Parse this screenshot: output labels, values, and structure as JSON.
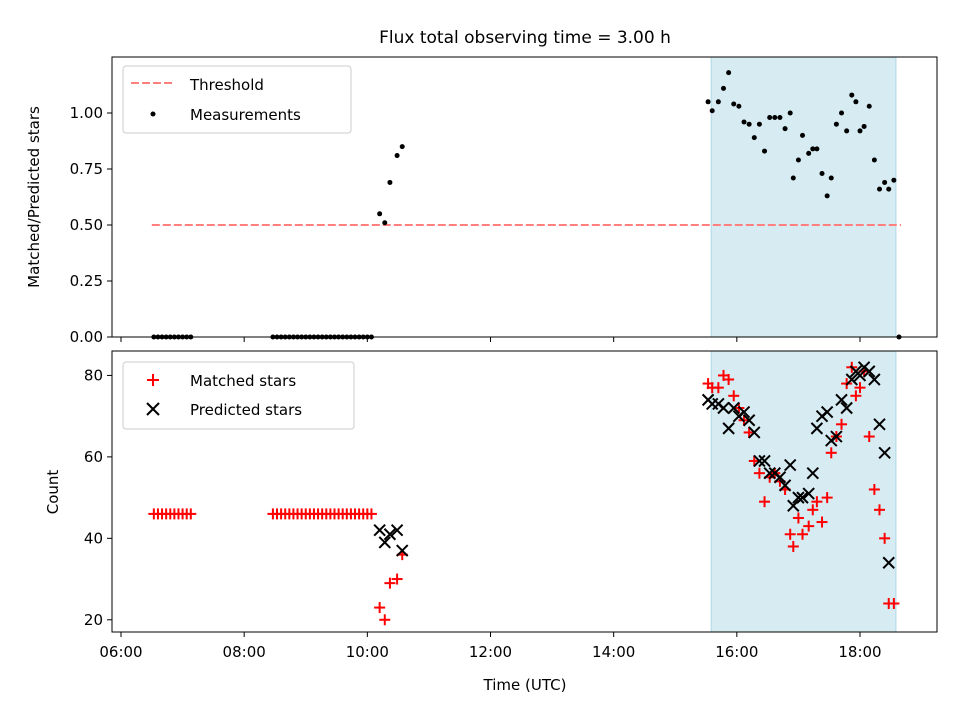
{
  "figure": {
    "title": "Flux total observing time = 3.00 h",
    "xlabel": "Time (UTC)"
  },
  "chart_data": [
    {
      "type": "scatter",
      "ylabel": "Matched/Predicted stars",
      "xlim": [
        "06:00",
        "19:00"
      ],
      "ylim": [
        0,
        1.25
      ],
      "yticks": [
        0.0,
        0.25,
        0.5,
        0.75,
        1.0
      ],
      "ytick_labels": [
        "0.00",
        "0.25",
        "0.50",
        "0.75",
        "1.00"
      ],
      "legend": {
        "placement": "top-left",
        "entries": [
          "Threshold",
          "Measurements"
        ]
      },
      "shaded_interval": {
        "start": "15:35",
        "end": "18:35",
        "color": "#add8e6"
      },
      "threshold": {
        "name": "Threshold",
        "value": 0.5,
        "x_start": "06:30",
        "x_end": "18:40",
        "color": "#ff7f7f",
        "style": "dashed"
      },
      "series": [
        {
          "name": "Measurements",
          "color": "#000000",
          "points": [
            [
              "06:32",
              0
            ],
            [
              "06:36",
              0
            ],
            [
              "06:40",
              0
            ],
            [
              "06:44",
              0
            ],
            [
              "06:48",
              0
            ],
            [
              "06:52",
              0
            ],
            [
              "06:56",
              0
            ],
            [
              "07:00",
              0
            ],
            [
              "07:04",
              0
            ],
            [
              "07:08",
              0
            ],
            [
              "08:28",
              0
            ],
            [
              "08:32",
              0
            ],
            [
              "08:36",
              0
            ],
            [
              "08:40",
              0
            ],
            [
              "08:44",
              0
            ],
            [
              "08:48",
              0
            ],
            [
              "08:52",
              0
            ],
            [
              "08:56",
              0
            ],
            [
              "09:00",
              0
            ],
            [
              "09:04",
              0
            ],
            [
              "09:08",
              0
            ],
            [
              "09:12",
              0
            ],
            [
              "09:16",
              0
            ],
            [
              "09:20",
              0
            ],
            [
              "09:24",
              0
            ],
            [
              "09:28",
              0
            ],
            [
              "09:32",
              0
            ],
            [
              "09:36",
              0
            ],
            [
              "09:40",
              0
            ],
            [
              "09:44",
              0
            ],
            [
              "09:48",
              0
            ],
            [
              "09:52",
              0
            ],
            [
              "09:56",
              0
            ],
            [
              "10:00",
              0
            ],
            [
              "10:04",
              0
            ],
            [
              "10:12",
              0.55
            ],
            [
              "10:17",
              0.51
            ],
            [
              "10:22",
              0.69
            ],
            [
              "10:29",
              0.81
            ],
            [
              "10:34",
              0.85
            ],
            [
              "15:32",
              1.05
            ],
            [
              "15:36",
              1.01
            ],
            [
              "15:42",
              1.05
            ],
            [
              "15:47",
              1.11
            ],
            [
              "15:52",
              1.18
            ],
            [
              "15:57",
              1.04
            ],
            [
              "16:02",
              1.03
            ],
            [
              "16:07",
              0.96
            ],
            [
              "16:12",
              0.95
            ],
            [
              "16:17",
              0.89
            ],
            [
              "16:22",
              0.95
            ],
            [
              "16:27",
              0.83
            ],
            [
              "16:32",
              0.98
            ],
            [
              "16:37",
              0.98
            ],
            [
              "16:42",
              0.98
            ],
            [
              "16:47",
              0.93
            ],
            [
              "16:52",
              1.0
            ],
            [
              "16:55",
              0.71
            ],
            [
              "17:00",
              0.79
            ],
            [
              "17:04",
              0.9
            ],
            [
              "17:10",
              0.82
            ],
            [
              "17:14",
              0.84
            ],
            [
              "17:18",
              0.84
            ],
            [
              "17:23",
              0.73
            ],
            [
              "17:28",
              0.63
            ],
            [
              "17:32",
              0.71
            ],
            [
              "17:37",
              0.95
            ],
            [
              "17:42",
              1.0
            ],
            [
              "17:47",
              0.92
            ],
            [
              "17:52",
              1.08
            ],
            [
              "17:56",
              1.05
            ],
            [
              "18:00",
              0.92
            ],
            [
              "18:04",
              0.94
            ],
            [
              "18:09",
              1.03
            ],
            [
              "18:14",
              0.79
            ],
            [
              "18:19",
              0.66
            ],
            [
              "18:24",
              0.69
            ],
            [
              "18:28",
              0.66
            ],
            [
              "18:33",
              0.7
            ],
            [
              "18:38",
              0.0
            ]
          ]
        }
      ]
    },
    {
      "type": "scatter",
      "ylabel": "Count",
      "xlabel": "Time (UTC)",
      "xlim": [
        "06:00",
        "19:00"
      ],
      "ylim": [
        17,
        86
      ],
      "yticks": [
        20,
        40,
        60,
        80
      ],
      "xticks": [
        "06:00",
        "08:00",
        "10:00",
        "12:00",
        "14:00",
        "16:00",
        "18:00"
      ],
      "legend": {
        "placement": "top-left",
        "entries": [
          "Matched stars",
          "Predicted stars"
        ]
      },
      "shaded_interval": {
        "start": "15:35",
        "end": "18:35",
        "color": "#add8e6"
      },
      "series": [
        {
          "name": "Matched stars",
          "marker": "plus",
          "color": "#ff0000",
          "points": [
            [
              "06:32",
              46
            ],
            [
              "06:36",
              46
            ],
            [
              "06:40",
              46
            ],
            [
              "06:44",
              46
            ],
            [
              "06:48",
              46
            ],
            [
              "06:52",
              46
            ],
            [
              "06:56",
              46
            ],
            [
              "07:00",
              46
            ],
            [
              "07:04",
              46
            ],
            [
              "07:08",
              46
            ],
            [
              "08:28",
              46
            ],
            [
              "08:32",
              46
            ],
            [
              "08:36",
              46
            ],
            [
              "08:40",
              46
            ],
            [
              "08:44",
              46
            ],
            [
              "08:48",
              46
            ],
            [
              "08:52",
              46
            ],
            [
              "08:56",
              46
            ],
            [
              "09:00",
              46
            ],
            [
              "09:04",
              46
            ],
            [
              "09:08",
              46
            ],
            [
              "09:12",
              46
            ],
            [
              "09:16",
              46
            ],
            [
              "09:20",
              46
            ],
            [
              "09:24",
              46
            ],
            [
              "09:28",
              46
            ],
            [
              "09:32",
              46
            ],
            [
              "09:36",
              46
            ],
            [
              "09:40",
              46
            ],
            [
              "09:44",
              46
            ],
            [
              "09:48",
              46
            ],
            [
              "09:52",
              46
            ],
            [
              "09:56",
              46
            ],
            [
              "10:00",
              46
            ],
            [
              "10:04",
              46
            ],
            [
              "10:12",
              23
            ],
            [
              "10:17",
              20
            ],
            [
              "10:22",
              29
            ],
            [
              "10:29",
              30
            ],
            [
              "10:34",
              36
            ],
            [
              "15:32",
              78
            ],
            [
              "15:36",
              77
            ],
            [
              "15:42",
              77
            ],
            [
              "15:47",
              80
            ],
            [
              "15:52",
              79
            ],
            [
              "15:57",
              75
            ],
            [
              "16:02",
              72
            ],
            [
              "16:07",
              69
            ],
            [
              "16:12",
              66
            ],
            [
              "16:17",
              59
            ],
            [
              "16:22",
              56
            ],
            [
              "16:27",
              49
            ],
            [
              "16:32",
              55
            ],
            [
              "16:37",
              56
            ],
            [
              "16:42",
              54
            ],
            [
              "16:47",
              52
            ],
            [
              "16:52",
              41
            ],
            [
              "16:55",
              38
            ],
            [
              "17:00",
              45
            ],
            [
              "17:04",
              41
            ],
            [
              "17:10",
              43
            ],
            [
              "17:14",
              47
            ],
            [
              "17:18",
              49
            ],
            [
              "17:23",
              44
            ],
            [
              "17:28",
              50
            ],
            [
              "17:32",
              61
            ],
            [
              "17:37",
              65
            ],
            [
              "17:42",
              68
            ],
            [
              "17:47",
              78
            ],
            [
              "17:52",
              82
            ],
            [
              "17:56",
              75
            ],
            [
              "18:00",
              77
            ],
            [
              "18:04",
              81
            ],
            [
              "18:09",
              65
            ],
            [
              "18:14",
              52
            ],
            [
              "18:19",
              47
            ],
            [
              "18:24",
              40
            ],
            [
              "18:28",
              24
            ],
            [
              "18:33",
              24
            ]
          ]
        },
        {
          "name": "Predicted stars",
          "marker": "x",
          "color": "#000000",
          "points": [
            [
              "10:12",
              42
            ],
            [
              "10:17",
              39
            ],
            [
              "10:22",
              41
            ],
            [
              "10:29",
              42
            ],
            [
              "10:34",
              37
            ],
            [
              "15:32",
              74
            ],
            [
              "15:36",
              73
            ],
            [
              "15:42",
              73
            ],
            [
              "15:47",
              72
            ],
            [
              "15:52",
              67
            ],
            [
              "15:57",
              72
            ],
            [
              "16:02",
              70
            ],
            [
              "16:07",
              71
            ],
            [
              "16:12",
              69
            ],
            [
              "16:17",
              66
            ],
            [
              "16:22",
              59
            ],
            [
              "16:27",
              59
            ],
            [
              "16:32",
              56
            ],
            [
              "16:37",
              56
            ],
            [
              "16:42",
              55
            ],
            [
              "16:47",
              53
            ],
            [
              "16:52",
              58
            ],
            [
              "16:55",
              48
            ],
            [
              "17:00",
              50
            ],
            [
              "17:04",
              50
            ],
            [
              "17:10",
              51
            ],
            [
              "17:14",
              56
            ],
            [
              "17:18",
              67
            ],
            [
              "17:23",
              70
            ],
            [
              "17:28",
              71
            ],
            [
              "17:32",
              64
            ],
            [
              "17:37",
              65
            ],
            [
              "17:42",
              74
            ],
            [
              "17:47",
              72
            ],
            [
              "17:52",
              79
            ],
            [
              "17:56",
              81
            ],
            [
              "18:00",
              80
            ],
            [
              "18:04",
              82
            ],
            [
              "18:09",
              81
            ],
            [
              "18:14",
              79
            ],
            [
              "18:19",
              68
            ],
            [
              "18:24",
              61
            ],
            [
              "18:28",
              34
            ]
          ]
        }
      ]
    }
  ]
}
